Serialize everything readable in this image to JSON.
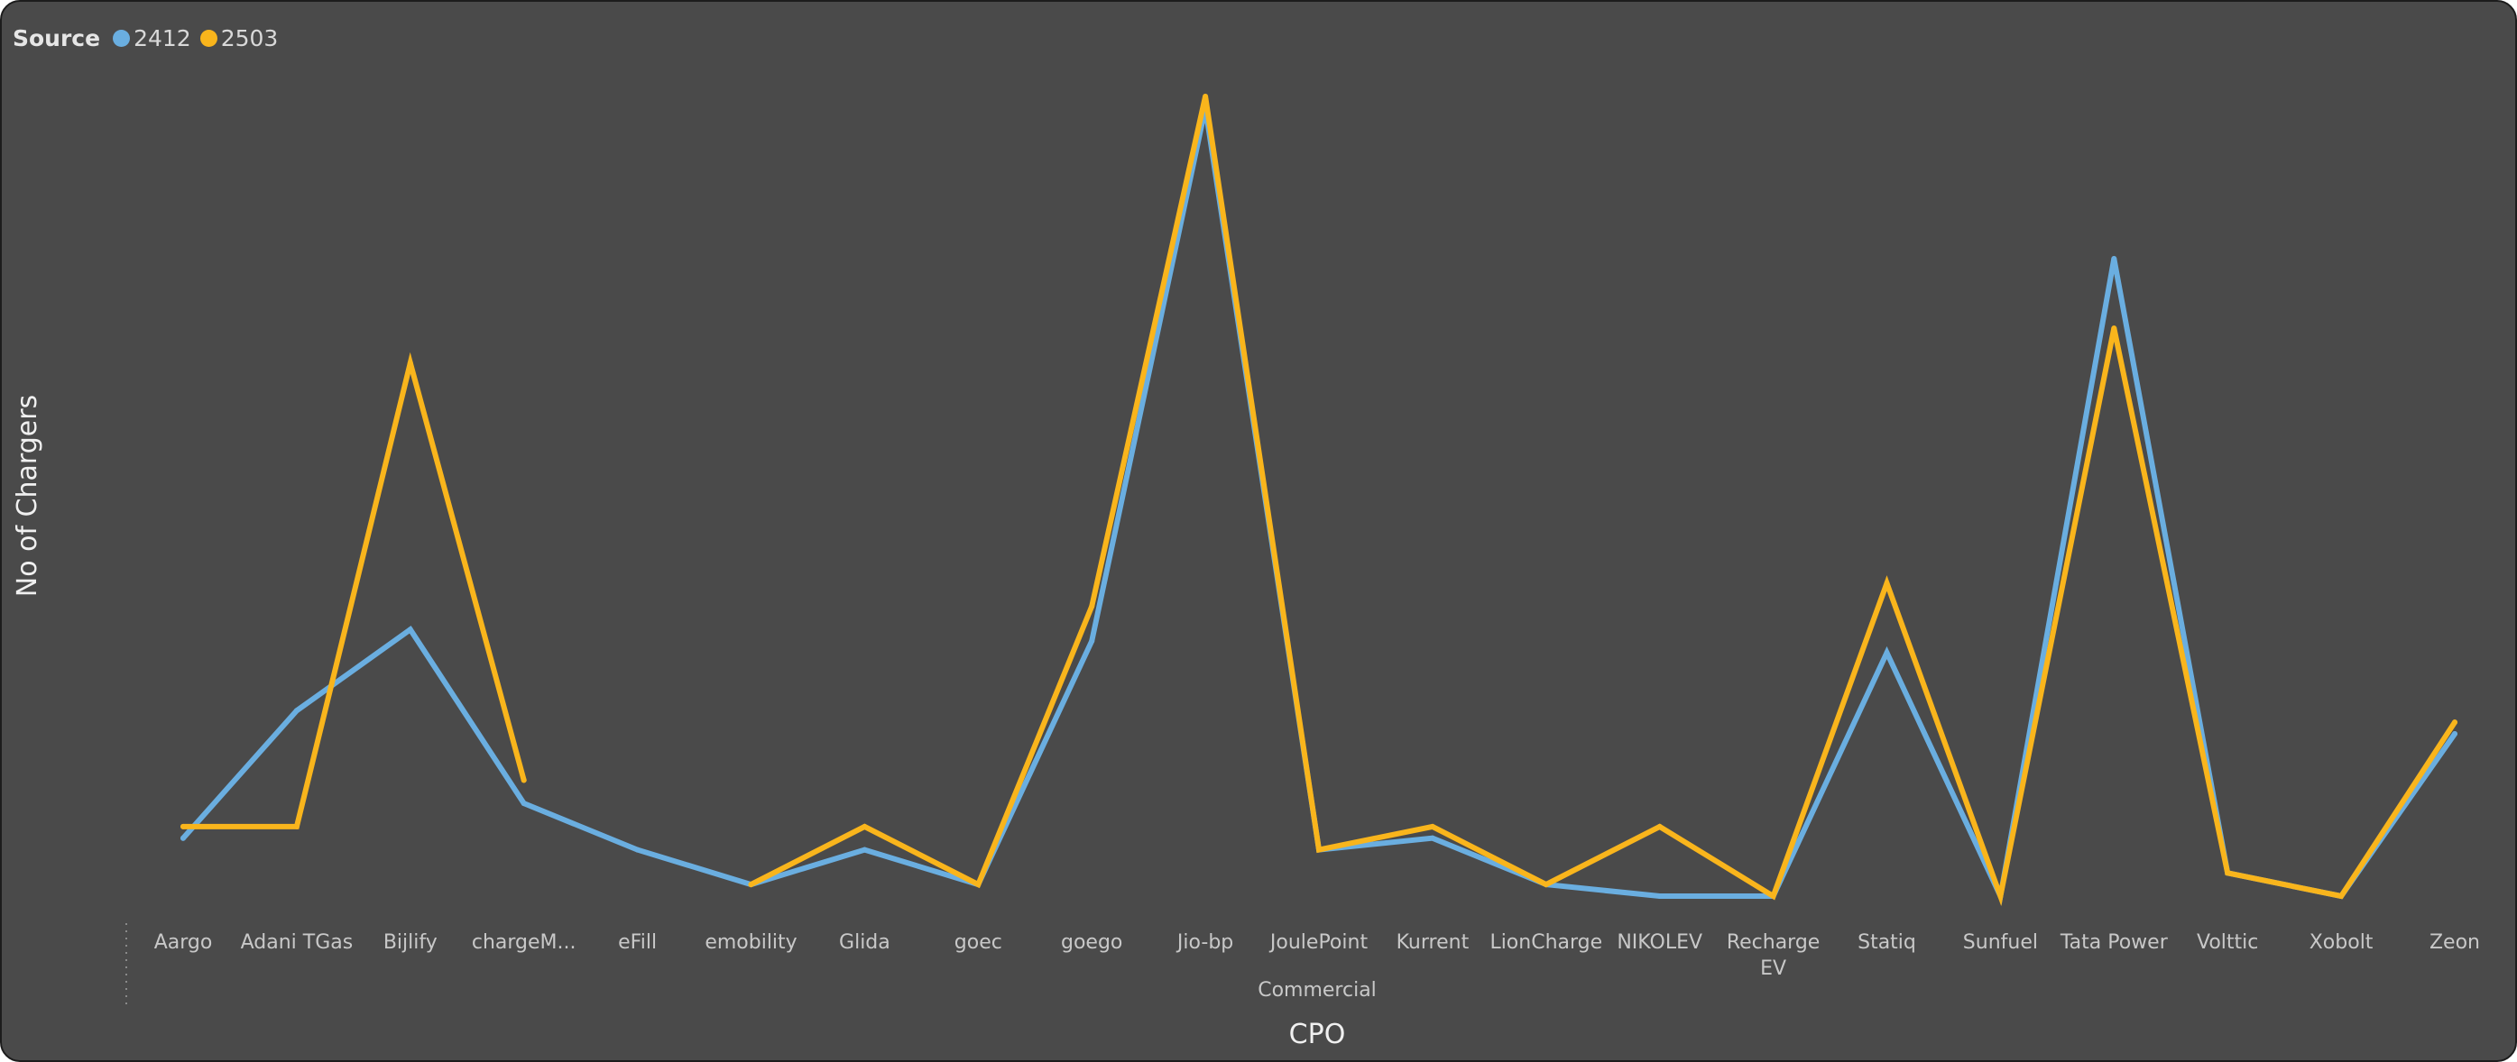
{
  "legend": {
    "title": "Source",
    "items": [
      {
        "label": "2412",
        "color": "#6aaee0"
      },
      {
        "label": "2503",
        "color": "#f9b51c"
      }
    ]
  },
  "chart_data": {
    "type": "line",
    "xlabel": "CPO",
    "ylabel": "No of Chargers",
    "group_label": "Commercial",
    "y_axis_labels": "hidden",
    "grid": false,
    "legend_position": "top-left",
    "categories": [
      "Aargo",
      "Adani TGas",
      "Bijlify",
      "chargeM...",
      "eFill",
      "emobility",
      "Glida",
      "goec",
      "goego",
      "Jio-bp",
      "JoulePoint",
      "Kurrent",
      "LionCharge",
      "NIKOLEV",
      "Recharge EV",
      "Statiq",
      "Sunfuel",
      "Tata Power",
      "Volttic",
      "Xobolt",
      "Zeon"
    ],
    "series": [
      {
        "name": "2412",
        "color": "#6aaee0",
        "values": [
          5,
          16,
          23,
          8,
          4,
          1,
          4,
          1,
          22,
          68,
          4,
          5,
          1,
          0,
          0,
          21,
          0,
          55,
          2,
          0,
          14
        ]
      },
      {
        "name": "2503",
        "color": "#f9b51c",
        "values": [
          6,
          6,
          46,
          10,
          null,
          1,
          6,
          1,
          25,
          69,
          4,
          6,
          1,
          6,
          0,
          27,
          0,
          49,
          2,
          0,
          15
        ]
      }
    ]
  }
}
